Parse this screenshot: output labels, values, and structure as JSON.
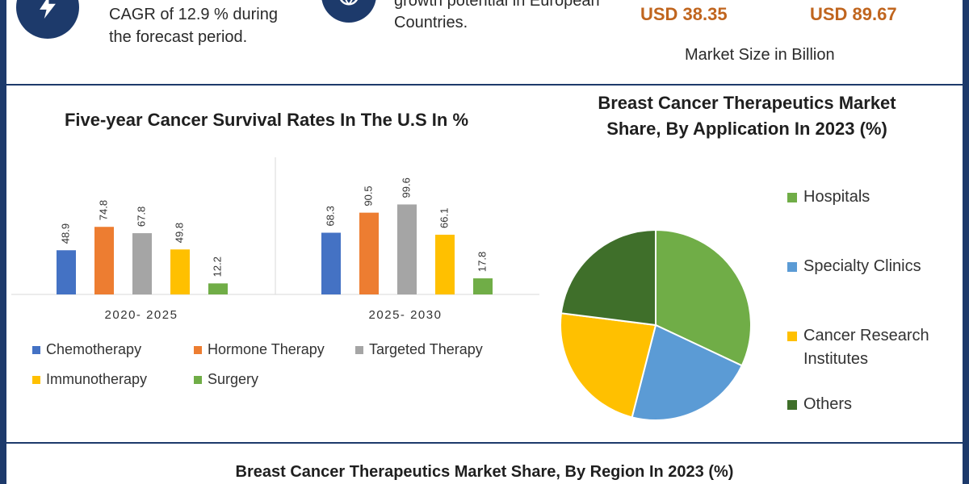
{
  "header": {
    "cagr_text": "CAGR of 12.9 % during",
    "forecast_text": "the forecast period.",
    "growth_text_1": "growth potential in European",
    "growth_text_2": "Countries.",
    "usd_start": "USD 38.35",
    "usd_end": "USD 89.67",
    "market_caption": "Market Size in Billion",
    "icon_left": "lightning-icon",
    "icon_middle": "globe-icon"
  },
  "colors": {
    "chemotherapy": "#4472c4",
    "hormone": "#ed7d31",
    "targeted": "#a5a5a5",
    "immunotherapy": "#ffc000",
    "surgery": "#70ad47",
    "hospitals": "#70ad47",
    "specialty": "#5b9bd5",
    "research": "#ffc000",
    "others": "#3f6f2a",
    "brand": "#1d3a6b",
    "accent": "#c0651e"
  },
  "chart_data": [
    {
      "type": "bar",
      "title": "Five-year Cancer Survival Rates In The U.S In %",
      "categories": [
        "2020- 2025",
        "2025- 2030"
      ],
      "series": [
        {
          "name": "Chemotherapy",
          "values": [
            48.9,
            68.3
          ]
        },
        {
          "name": "Hormone Therapy",
          "values": [
            74.8,
            90.5
          ]
        },
        {
          "name": "Targeted Therapy",
          "values": [
            67.8,
            99.6
          ]
        },
        {
          "name": "Immunotherapy",
          "values": [
            49.8,
            66.1
          ]
        },
        {
          "name": "Surgery",
          "values": [
            12.2,
            17.8
          ]
        }
      ],
      "ylim": [
        0,
        100
      ],
      "legend": "bottom",
      "grid": false
    },
    {
      "type": "pie",
      "title": "Breast Cancer Therapeutics Market Share, By Application In 2023 (%)",
      "labels": [
        "Hospitals",
        "Specialty Clinics",
        "Cancer Research Institutes",
        "Others"
      ],
      "values": [
        32,
        22,
        23,
        23
      ],
      "legend": "right"
    }
  ],
  "footer": {
    "region_title": "Breast Cancer Therapeutics Market Share, By Region In 2023 (%)"
  }
}
